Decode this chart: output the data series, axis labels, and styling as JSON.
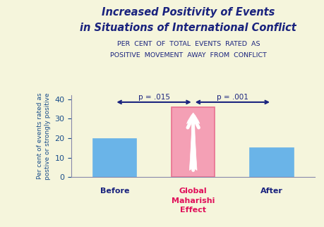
{
  "title_line1": "Increased Positivity of Events",
  "title_line2": "in Situations of International Conflict",
  "subtitle_line1": "PER  CENT  OF  TOTAL  EVENTS  RATED  AS",
  "subtitle_line2": "POSITIVE  MOVEMENT  AWAY  FROM  CONFLICT",
  "categories": [
    "Before",
    "Global\nMaharishi\nEffect",
    "After"
  ],
  "values": [
    19.5,
    36.0,
    15.0
  ],
  "bar_colors": [
    "#6ab4e8",
    "#f4a0b5",
    "#6ab4e8"
  ],
  "bar_edge_colors": [
    "#6ab4e8",
    "#e87090",
    "#6ab4e8"
  ],
  "ylabel": "Per cent of events rated as\npostive or strongly positive",
  "ylim": [
    0,
    42
  ],
  "yticks": [
    0,
    10,
    20,
    30,
    40
  ],
  "background_color": "#f5f5dc",
  "title_color": "#1a237e",
  "subtitle_color": "#1a237e",
  "xlabel_colors": [
    "#1a237e",
    "#e0105a",
    "#1a237e"
  ],
  "ylabel_color": "#1a4e8a",
  "tick_color": "#1a4e8a",
  "arrow_color": "#1a237e",
  "p1_text": "p = .015",
  "p2_text": "p = .001",
  "arrow_lw": 1.5
}
